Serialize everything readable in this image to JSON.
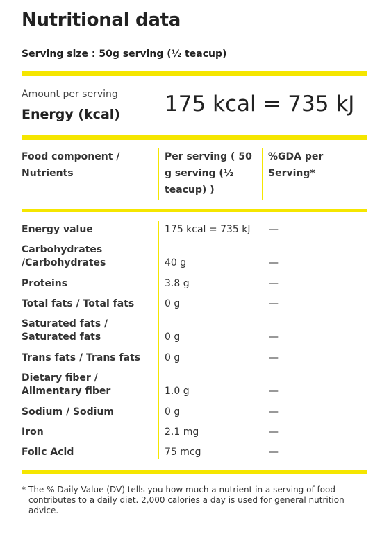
{
  "title": "Nutritional data",
  "serving_size": "Serving size : 50g serving (½ teacup)",
  "energy": {
    "amount_label": "Amount per serving",
    "label": "Energy (kcal)",
    "value": "175 kcal = 735 kJ"
  },
  "table": {
    "headers": {
      "component": "Food component / Nutrients",
      "per_serving": "Per serving ( 50 g serving (½ teacup) )",
      "gda": "%GDA per Serving*"
    },
    "rows": [
      {
        "name": "Energy value",
        "value": "175 kcal = 735 kJ",
        "gda": "—"
      },
      {
        "name": "Carbohydrates /Carbohydrates",
        "value": "40 g",
        "gda": "—"
      },
      {
        "name": "Proteins",
        "value": "3.8 g",
        "gda": "—"
      },
      {
        "name": "Total fats / Total fats",
        "value": "0 g",
        "gda": "—"
      },
      {
        "name": "Saturated fats / Saturated fats",
        "value": "0 g",
        "gda": "—"
      },
      {
        "name": "Trans fats / Trans fats",
        "value": "0 g",
        "gda": "—"
      },
      {
        "name": "Dietary fiber / Alimentary fiber",
        "value": "1.0 g",
        "gda": "—"
      },
      {
        "name": "Sodium / Sodium",
        "value": "0 g",
        "gda": "—"
      },
      {
        "name": "Iron",
        "value": "2.1 mg",
        "gda": "—"
      },
      {
        "name": "Folic Acid",
        "value": "75 mcg",
        "gda": "—"
      }
    ]
  },
  "footnote": {
    "marker": "*",
    "text": "The % Daily Value (DV) tells you how much a nutrient in a serving of food contributes to a daily diet. 2,000 calories a day is used for general nutrition advice."
  },
  "colors": {
    "accent": "#f5e600",
    "text": "#222222"
  }
}
